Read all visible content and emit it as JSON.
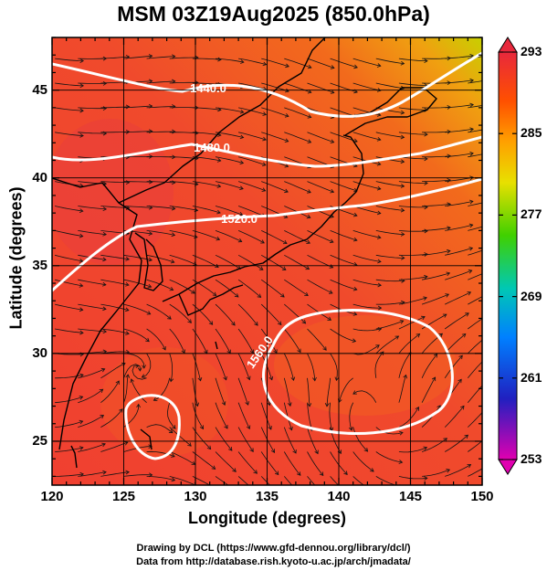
{
  "title": "MSM 03Z19Aug2025 (850.0hPa)",
  "x_axis": {
    "label": "Longitude (degrees)",
    "ticks": [
      120,
      125,
      130,
      135,
      140,
      145,
      150
    ]
  },
  "y_axis": {
    "label": "Latitude  (degrees)",
    "ticks": [
      25,
      30,
      35,
      40,
      45
    ]
  },
  "contours": [
    {
      "label": "1440.0"
    },
    {
      "label": "1480.0"
    },
    {
      "label": "1520.0"
    },
    {
      "label": "1560.0"
    }
  ],
  "colorbar": {
    "ticks": [
      293,
      285,
      277,
      269,
      261,
      253
    ],
    "colors": [
      "#e8283c",
      "#ff5a00",
      "#ffa000",
      "#e0e000",
      "#50d000",
      "#00c8b4",
      "#0070ff",
      "#2020c0",
      "#8000c0",
      "#e000b0"
    ]
  },
  "credits": [
    "Drawing by DCL (https://www.gfd-dennou.org/library/dcl/)",
    "Data from http://database.rish.kyoto-u.ac.jp/arch/jmadata/"
  ]
}
